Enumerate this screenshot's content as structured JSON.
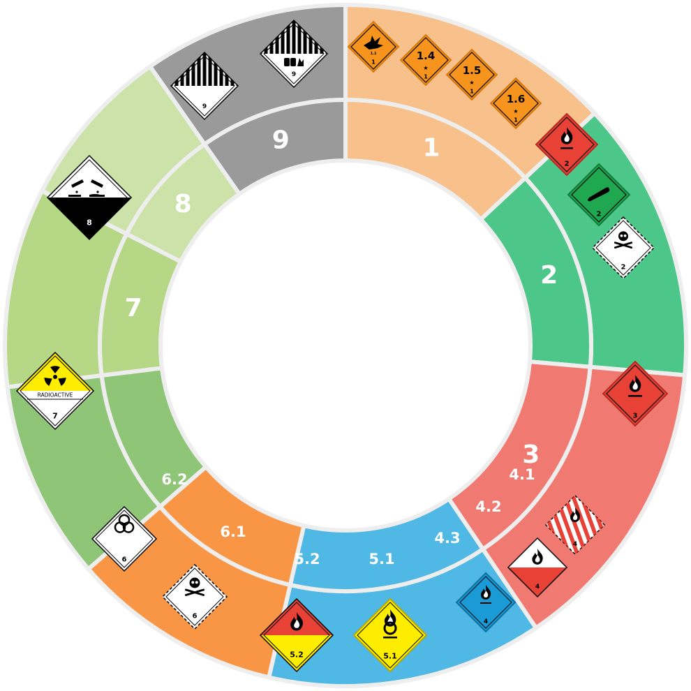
{
  "classes": [
    {
      "id": "1",
      "label": "1",
      "color": "#f8c08a",
      "inner_color": "#f8c08a"
    },
    {
      "id": "2",
      "label": "2",
      "color": "#4dc68a",
      "inner_color": "#4dc68a"
    },
    {
      "id": "3",
      "label": "3",
      "color": "#f07a71",
      "inner_color": "#f07a71"
    },
    {
      "id": "4",
      "label": "",
      "color": "#4fb8e4",
      "inner_color": "#4fb8e4",
      "sub_labels": [
        "4.1",
        "4.2",
        "4.3"
      ]
    },
    {
      "id": "5",
      "label": "",
      "color": "#f89645",
      "inner_color": "#f89645",
      "sub_labels": [
        "5.2",
        "5.1"
      ]
    },
    {
      "id": "6",
      "label": "",
      "color": "#8fc576",
      "inner_color": "#8fc576",
      "sub_labels": [
        "6.2",
        "6.1"
      ]
    },
    {
      "id": "7",
      "label": "7",
      "color": "#b6d786",
      "inner_color": "#b6d786"
    },
    {
      "id": "8",
      "label": "8",
      "color": "#cce2a8",
      "inner_color": "#cce2a8"
    },
    {
      "id": "9",
      "label": "9",
      "color": "#9b9a9a",
      "inner_color": "#9b9a9a"
    }
  ],
  "placards": {
    "explosive_1": {
      "small_text": "1.1",
      "number": "1"
    },
    "explosive_1_4": {
      "division": "1.4",
      "number": "1"
    },
    "explosive_1_5": {
      "division": "1.5",
      "number": "1"
    },
    "explosive_1_6": {
      "division": "1.6",
      "number": "1"
    },
    "flammable_gas": {
      "number": "2",
      "color": "#e84135"
    },
    "non_flammable_gas": {
      "number": "2",
      "color": "#1fa84f"
    },
    "toxic_gas": {
      "number": "2"
    },
    "flammable_liquid": {
      "number": "3",
      "color": "#e84135"
    },
    "flammable_solid": {
      "number": "4"
    },
    "spontaneously_combustible": {
      "number": "4"
    },
    "dangerous_when_wet": {
      "number": "4",
      "color": "#1a9bd6"
    },
    "oxidizer": {
      "number": "5.1",
      "color": "#ffed00"
    },
    "organic_peroxide": {
      "number": "5.2"
    },
    "toxic": {
      "number": "6"
    },
    "infectious": {
      "number": "6"
    },
    "radioactive": {
      "text": "RADIOACTIVE",
      "number": "7"
    },
    "corrosive": {
      "number": "8"
    },
    "misc_1": {
      "number": "9"
    },
    "misc_2": {
      "number": "9"
    }
  }
}
